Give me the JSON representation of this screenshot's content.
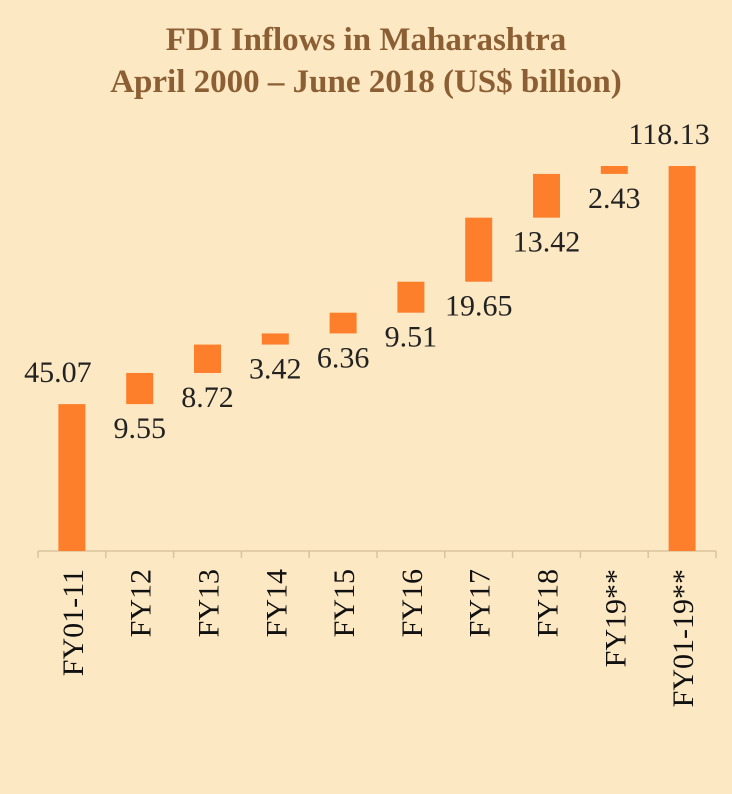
{
  "chart_data": {
    "type": "bar",
    "subtype": "waterfall",
    "title": "FDI Inflows in Maharashtra",
    "subtitle": "April 2000 – June 2018 (US$ billion)",
    "categories": [
      "FY01-11",
      "FY12",
      "FY13",
      "FY14",
      "FY15",
      "FY16",
      "FY17",
      "FY18",
      "FY19**",
      "FY01-19**"
    ],
    "values": [
      45.07,
      9.55,
      8.72,
      3.42,
      6.36,
      9.51,
      19.65,
      13.42,
      2.43,
      118.13
    ],
    "value_labels": [
      "45.07",
      "9.55",
      "8.72",
      "3.42",
      "6.36",
      "9.51",
      "19.65",
      "13.42",
      "2.43",
      "118.13"
    ],
    "total_index": 9,
    "ylim": [
      0,
      118.13
    ],
    "grid": false,
    "legend": "none",
    "colors": {
      "bar": "#fd7f2c",
      "background": "#fce8c3",
      "title": "#8b5e34",
      "axis": "#d9c4a0"
    }
  }
}
